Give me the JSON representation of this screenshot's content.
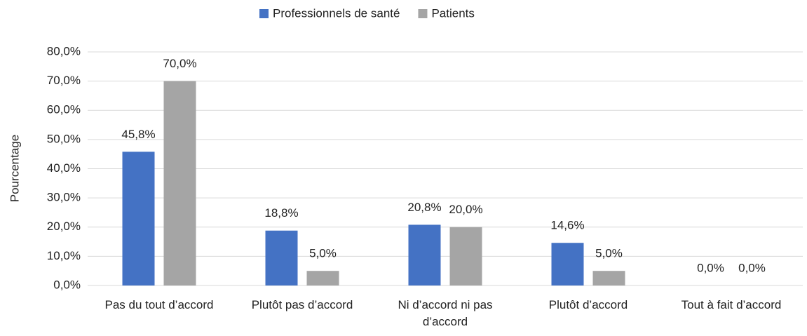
{
  "chart_data": {
    "type": "bar",
    "y_axis_label": "Pourcentage",
    "categories": [
      "Pas du tout d’accord",
      "Plutôt pas d’accord",
      "Ni d’accord ni pas d’accord",
      "Plutôt d’accord",
      "Tout à fait d’accord"
    ],
    "series": [
      {
        "name": "Professionnels de santé",
        "color": "#4472c4",
        "values": [
          45.8,
          18.8,
          20.8,
          14.6,
          0.0
        ],
        "value_labels": [
          "45,8%",
          "18,8%",
          "20,8%",
          "14,6%",
          "0,0%"
        ]
      },
      {
        "name": "Patients",
        "color": "#a5a5a5",
        "values": [
          70.0,
          5.0,
          20.0,
          5.0,
          0.0
        ],
        "value_labels": [
          "70,0%",
          "5,0%",
          "20,0%",
          "5,0%",
          "0,0%"
        ]
      }
    ],
    "ylim": [
      0,
      80
    ],
    "yticks": [
      {
        "value": 0,
        "label": "0,0%"
      },
      {
        "value": 10,
        "label": "10,0%"
      },
      {
        "value": 20,
        "label": "20,0%"
      },
      {
        "value": 30,
        "label": "30,0%"
      },
      {
        "value": 40,
        "label": "40,0%"
      },
      {
        "value": 50,
        "label": "50,0%"
      },
      {
        "value": 60,
        "label": "60,0%"
      },
      {
        "value": 70,
        "label": "70,0%"
      },
      {
        "value": 80,
        "label": "80,0%"
      }
    ],
    "grid": true,
    "legend": "top"
  }
}
